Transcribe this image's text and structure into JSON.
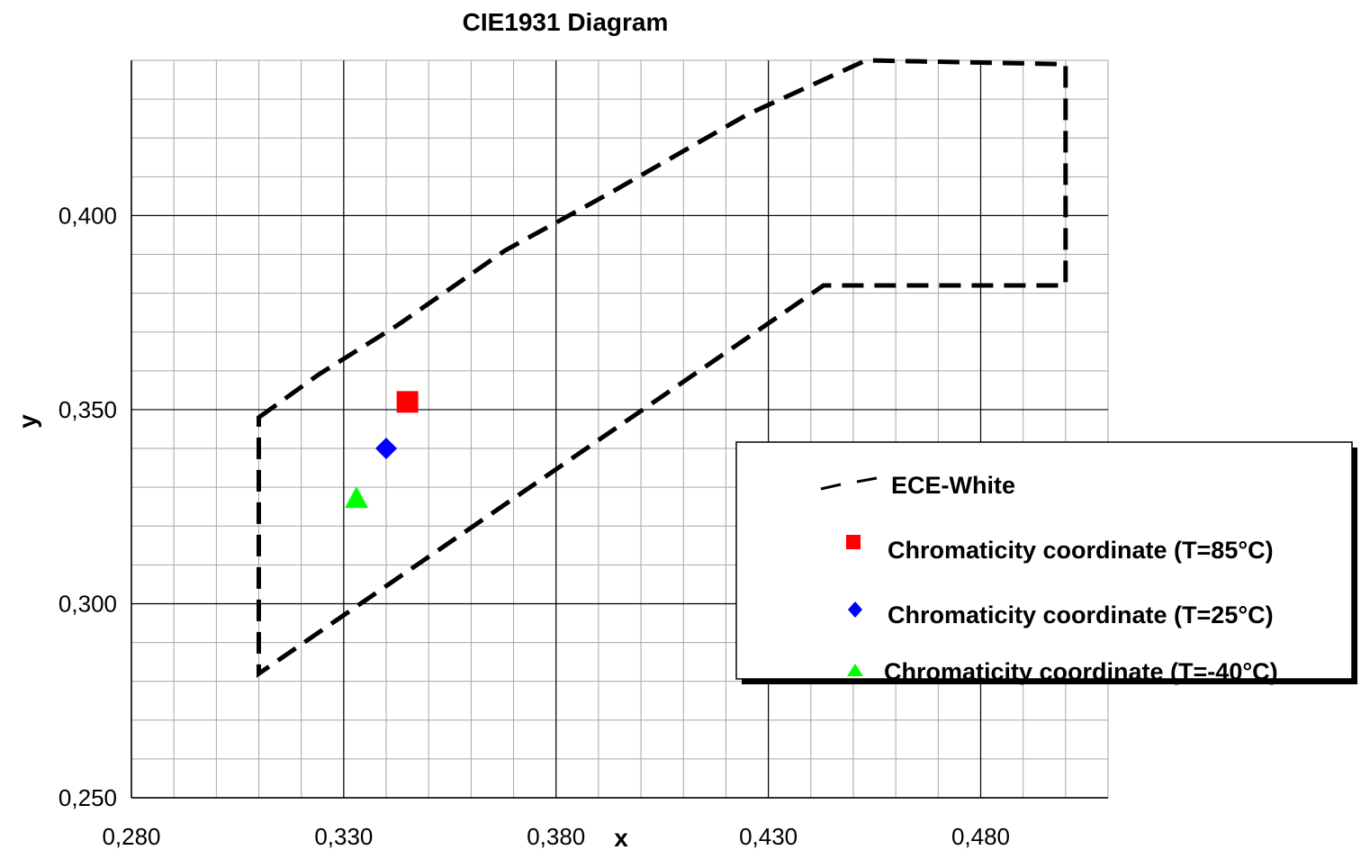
{
  "chart_data": {
    "type": "scatter",
    "title": "CIE1931 Diagram",
    "xlabel": "x",
    "ylabel": "y",
    "xlim": [
      0.28,
      0.51
    ],
    "ylim": [
      0.25,
      0.44
    ],
    "xticks": [
      0.28,
      0.33,
      0.38,
      0.43,
      0.48
    ],
    "yticks": [
      0.25,
      0.3,
      0.35,
      0.4
    ],
    "xtick_labels": [
      "0,280",
      "0,330",
      "0,380",
      "0,430",
      "0,480"
    ],
    "ytick_labels": [
      "0,250",
      "0,300",
      "0,350",
      "0,400"
    ],
    "grid": true,
    "legend_position": "right",
    "series": [
      {
        "name": "ECE-White",
        "kind": "polygon-dashed",
        "color": "#000000",
        "points": [
          [
            0.31,
            0.348
          ],
          [
            0.324,
            0.359
          ],
          [
            0.343,
            0.372
          ],
          [
            0.368,
            0.391
          ],
          [
            0.393,
            0.406
          ],
          [
            0.425,
            0.426
          ],
          [
            0.453,
            0.44
          ],
          [
            0.5,
            0.439
          ],
          [
            0.5,
            0.382
          ],
          [
            0.443,
            0.382
          ],
          [
            0.31,
            0.282
          ]
        ]
      },
      {
        "name": "Chromaticity coordinate (T=85°C)",
        "marker": "square",
        "color": "#ff0000",
        "x": 0.345,
        "y": 0.352
      },
      {
        "name": "Chromaticity coordinate (T=25°C)",
        "marker": "diamond",
        "color": "#0000ff",
        "x": 0.34,
        "y": 0.34
      },
      {
        "name": "Chromaticity coordinate (T=-40°C)",
        "marker": "triangle",
        "color": "#00ff00",
        "x": 0.333,
        "y": 0.327
      }
    ]
  },
  "legend": {
    "items": [
      "ECE-White",
      "Chromaticity coordinate (T=85°C)",
      "Chromaticity coordinate (T=25°C)",
      "Chromaticity coordinate (T=-40°C)"
    ]
  }
}
